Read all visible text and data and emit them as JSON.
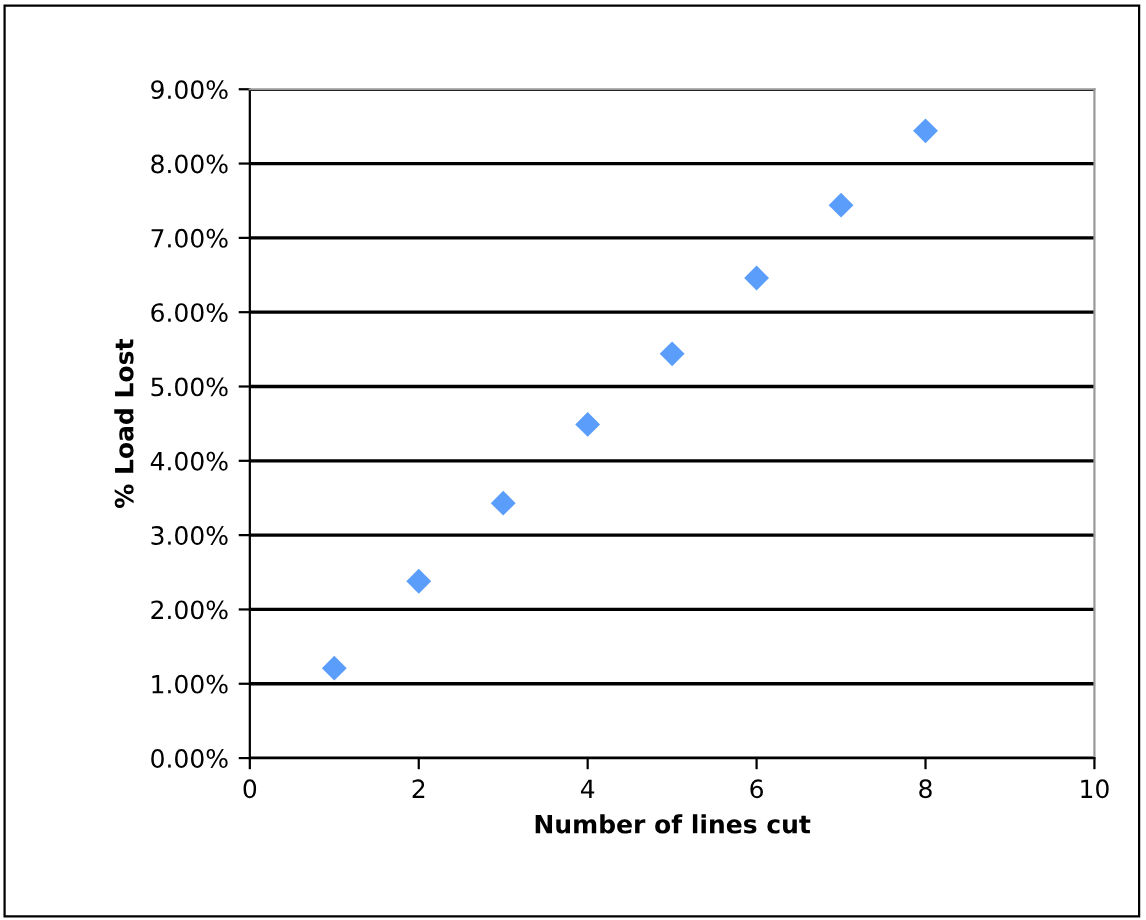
{
  "chart_data": {
    "type": "scatter",
    "xlabel": "Number of lines cut",
    "ylabel": "% Load Lost",
    "x": [
      1,
      2,
      3,
      4,
      5,
      6,
      7,
      8
    ],
    "series": [
      {
        "color": "#5b9dfa",
        "values": [
          1.21,
          2.38,
          3.43,
          4.49,
          5.44,
          6.46,
          7.44,
          8.44
        ]
      }
    ],
    "xlim": [
      0,
      10
    ],
    "xticks": [
      0,
      2,
      4,
      6,
      8,
      10
    ],
    "ylim": [
      0,
      9
    ],
    "yticks": [
      {
        "value": 0,
        "label": "0.00%"
      },
      {
        "value": 1,
        "label": "1.00%"
      },
      {
        "value": 2,
        "label": "2.00%"
      },
      {
        "value": 3,
        "label": "3.00%"
      },
      {
        "value": 4,
        "label": "4.00%"
      },
      {
        "value": 5,
        "label": "5.00%"
      },
      {
        "value": 6,
        "label": "6.00%"
      },
      {
        "value": 7,
        "label": "7.00%"
      },
      {
        "value": 8,
        "label": "8.00%"
      },
      {
        "value": 9,
        "label": "9.00%"
      }
    ],
    "grid": "y",
    "marker": "diamond"
  }
}
